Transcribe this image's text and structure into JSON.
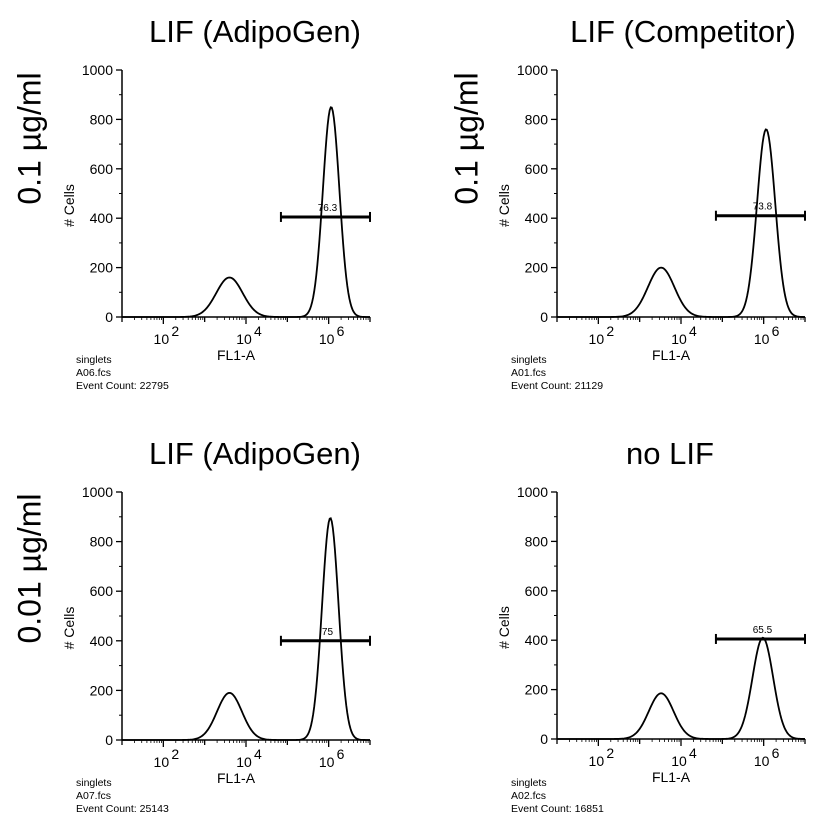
{
  "row_labels": [
    "0.1 µg/ml",
    "0.1 µg/ml",
    "0.01 µg/ml"
  ],
  "chart_data": [
    {
      "type": "line",
      "title": "LIF (AdipoGen)",
      "xlabel": "FL1-A",
      "ylabel": "# Cells",
      "xscale": "log",
      "xlim": [
        10,
        10000000
      ],
      "ylim": [
        0,
        1000
      ],
      "yticks": [
        "0",
        "200",
        "400",
        "600",
        "800",
        "1000"
      ],
      "xticks": [
        "10",
        "4",
        "10",
        "6",
        "10"
      ],
      "xtick_base": "10",
      "xtick_exps": [
        "2",
        "4",
        "6"
      ],
      "peaks": [
        {
          "center_log10": 3.6,
          "height": 160,
          "width": 0.32
        },
        {
          "center_log10": 6.06,
          "height": 850,
          "width": 0.2
        }
      ],
      "gate": {
        "start": 70000,
        "end": 10000000,
        "y": 405,
        "label": "76.3"
      },
      "meta": [
        "singlets",
        "A06.fcs",
        "Event Count: 22795"
      ]
    },
    {
      "type": "line",
      "title": "LIF (Competitor)",
      "xlabel": "FL1-A",
      "ylabel": "# Cells",
      "xscale": "log",
      "xlim": [
        10,
        10000000
      ],
      "ylim": [
        0,
        1000
      ],
      "yticks": [
        "0",
        "200",
        "400",
        "600",
        "800",
        "1000"
      ],
      "xtick_base": "10",
      "xtick_exps": [
        "2",
        "4",
        "6"
      ],
      "peaks": [
        {
          "center_log10": 3.52,
          "height": 200,
          "width": 0.32
        },
        {
          "center_log10": 6.06,
          "height": 760,
          "width": 0.22
        }
      ],
      "gate": {
        "start": 70000,
        "end": 10000000,
        "y": 410,
        "label": "73.8"
      },
      "meta": [
        "singlets",
        "A01.fcs",
        "Event Count: 21129"
      ]
    },
    {
      "type": "line",
      "title": "LIF (AdipoGen)",
      "xlabel": "FL1-A",
      "ylabel": "# Cells",
      "xscale": "log",
      "xlim": [
        10,
        10000000
      ],
      "ylim": [
        0,
        1000
      ],
      "yticks": [
        "0",
        "200",
        "400",
        "600",
        "800",
        "1000"
      ],
      "xtick_base": "10",
      "xtick_exps": [
        "2",
        "4",
        "6"
      ],
      "peaks": [
        {
          "center_log10": 3.6,
          "height": 190,
          "width": 0.3
        },
        {
          "center_log10": 6.04,
          "height": 895,
          "width": 0.2
        }
      ],
      "gate": {
        "start": 70000,
        "end": 10000000,
        "y": 400,
        "label": "75"
      },
      "meta": [
        "singlets",
        "A07.fcs",
        "Event Count: 25143"
      ]
    },
    {
      "type": "line",
      "title": "no LIF",
      "xlabel": "FL1-A",
      "ylabel": "# Cells",
      "xscale": "log",
      "xlim": [
        10,
        10000000
      ],
      "ylim": [
        0,
        1000
      ],
      "yticks": [
        "0",
        "200",
        "400",
        "600",
        "800",
        "1000"
      ],
      "xtick_base": "10",
      "xtick_exps": [
        "2",
        "4",
        "6"
      ],
      "peaks": [
        {
          "center_log10": 3.52,
          "height": 185,
          "width": 0.3
        },
        {
          "center_log10": 5.98,
          "height": 410,
          "width": 0.25
        }
      ],
      "gate": {
        "start": 70000,
        "end": 10000000,
        "y": 405,
        "label": "65.5"
      },
      "meta": [
        "singlets",
        "A02.fcs",
        "Event Count: 16851"
      ]
    }
  ]
}
